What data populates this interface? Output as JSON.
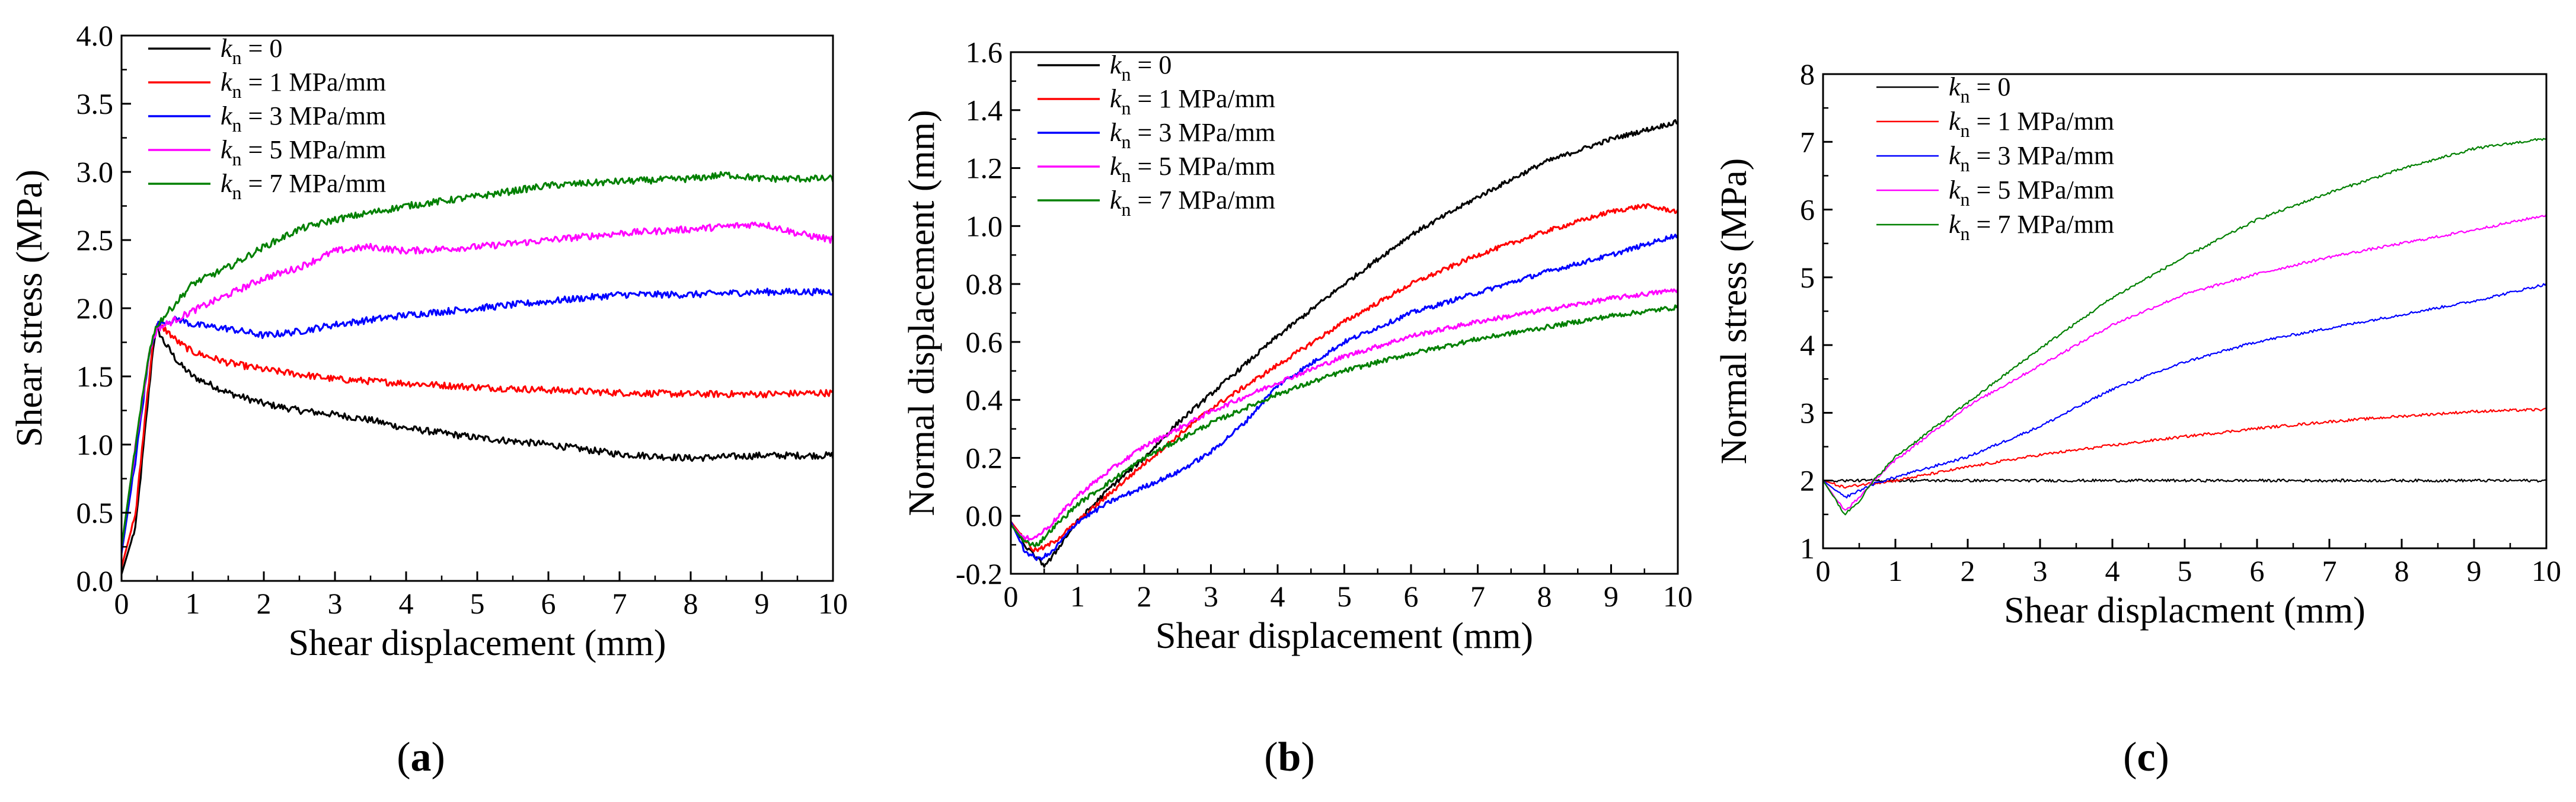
{
  "chart_data": [
    {
      "type": "line",
      "panel_label": "a",
      "xlabel": "Shear displacement (mm)",
      "ylabel": "Shear stress (MPa)",
      "xlim": [
        0,
        10
      ],
      "ylim": [
        0,
        4.0
      ],
      "xticks": [
        0,
        1,
        2,
        3,
        4,
        5,
        6,
        7,
        8,
        9,
        10
      ],
      "yticks": [
        0.0,
        0.5,
        1.0,
        1.5,
        2.0,
        2.5,
        3.0,
        3.5,
        4.0
      ],
      "ytick_decimals": 1,
      "legend_position": "top-left",
      "noise": 0.025,
      "series": [
        {
          "name": "k_n = 0",
          "legend_var": "k",
          "legend_sub": "n",
          "legend_rest": " = 0",
          "color": "#000000",
          "x": [
            0,
            0.2,
            0.35,
            0.45,
            0.5,
            0.6,
            0.8,
            1,
            1.5,
            2,
            2.5,
            3,
            3.5,
            4,
            5,
            6,
            7,
            8,
            9,
            10
          ],
          "y": [
            0.05,
            0.4,
            1.2,
            1.75,
            1.85,
            1.75,
            1.6,
            1.5,
            1.38,
            1.3,
            1.25,
            1.22,
            1.18,
            1.12,
            1.05,
            1.0,
            0.93,
            0.9,
            0.92,
            0.92
          ]
        },
        {
          "name": "k_n = 1 MPa/mm",
          "legend_var": "k",
          "legend_sub": "n",
          "legend_rest": " = 1 MPa/mm",
          "color": "#ff0000",
          "x": [
            0,
            0.2,
            0.35,
            0.45,
            0.5,
            0.6,
            0.8,
            1,
            1.5,
            2,
            3,
            4,
            5,
            6,
            7,
            8,
            9,
            10
          ],
          "y": [
            0.1,
            0.5,
            1.3,
            1.8,
            1.88,
            1.85,
            1.75,
            1.68,
            1.6,
            1.55,
            1.48,
            1.45,
            1.42,
            1.4,
            1.38,
            1.37,
            1.37,
            1.38
          ]
        },
        {
          "name": "k_n = 3 MPa/mm",
          "legend_var": "k",
          "legend_sub": "n",
          "legend_rest": " = 3 MPa/mm",
          "color": "#0000ff",
          "x": [
            0,
            0.2,
            0.4,
            0.5,
            0.6,
            0.8,
            1,
            1.5,
            2,
            2.5,
            3,
            4,
            5,
            6,
            7,
            8,
            9,
            10
          ],
          "y": [
            0.2,
            0.9,
            1.7,
            1.88,
            1.9,
            1.92,
            1.88,
            1.85,
            1.8,
            1.83,
            1.88,
            1.95,
            2.0,
            2.05,
            2.1,
            2.1,
            2.12,
            2.12
          ]
        },
        {
          "name": "k_n = 5 MPa/mm",
          "legend_var": "k",
          "legend_sub": "n",
          "legend_rest": " = 5 MPa/mm",
          "color": "#ff00ff",
          "x": [
            0,
            0.2,
            0.4,
            0.5,
            0.7,
            1,
            1.5,
            2,
            2.5,
            3,
            3.5,
            4,
            5,
            6,
            7,
            8,
            9,
            9.5,
            10
          ],
          "y": [
            0.25,
            1.0,
            1.7,
            1.85,
            1.9,
            1.98,
            2.1,
            2.22,
            2.3,
            2.42,
            2.45,
            2.42,
            2.45,
            2.5,
            2.55,
            2.58,
            2.62,
            2.55,
            2.5
          ]
        },
        {
          "name": "k_n = 7 MPa/mm",
          "legend_var": "k",
          "legend_sub": "n",
          "legend_rest": " = 7 MPa/mm",
          "color": "#008000",
          "x": [
            0,
            0.2,
            0.4,
            0.5,
            0.7,
            1,
            1.5,
            2,
            2.5,
            3,
            3.5,
            4,
            5,
            6,
            7,
            8,
            8.5,
            9,
            10
          ],
          "y": [
            0.25,
            1.0,
            1.72,
            1.88,
            2.0,
            2.18,
            2.3,
            2.45,
            2.58,
            2.65,
            2.7,
            2.75,
            2.82,
            2.9,
            2.93,
            2.95,
            2.98,
            2.95,
            2.95
          ]
        }
      ]
    },
    {
      "type": "line",
      "panel_label": "b",
      "xlabel": "Shear displacement (mm)",
      "ylabel": "Normal displacement (mm)",
      "xlim": [
        0,
        10
      ],
      "ylim": [
        -0.2,
        1.6
      ],
      "xticks": [
        0,
        1,
        2,
        3,
        4,
        5,
        6,
        7,
        8,
        9,
        10
      ],
      "yticks": [
        -0.2,
        0.0,
        0.2,
        0.4,
        0.6,
        0.8,
        1.0,
        1.2,
        1.4,
        1.6
      ],
      "ytick_decimals": 1,
      "legend_position": "top-left",
      "noise": 0.008,
      "series": [
        {
          "name": "k_n = 0",
          "legend_var": "k",
          "legend_sub": "n",
          "legend_rest": " = 0",
          "color": "#000000",
          "x": [
            0,
            0.2,
            0.4,
            0.5,
            0.6,
            0.8,
            1,
            1.5,
            2,
            2.5,
            3,
            3.5,
            4,
            5,
            6,
            7,
            8,
            9,
            10
          ],
          "y": [
            -0.02,
            -0.1,
            -0.15,
            -0.17,
            -0.15,
            -0.08,
            -0.02,
            0.1,
            0.2,
            0.32,
            0.42,
            0.52,
            0.62,
            0.8,
            0.97,
            1.1,
            1.22,
            1.3,
            1.36
          ]
        },
        {
          "name": "k_n = 1 MPa/mm",
          "legend_var": "k",
          "legend_sub": "n",
          "legend_rest": " = 1 MPa/mm",
          "color": "#ff0000",
          "x": [
            0,
            0.2,
            0.35,
            0.5,
            0.7,
            1,
            1.5,
            2,
            3,
            4,
            5,
            6,
            7,
            8,
            9,
            9.5,
            10
          ],
          "y": [
            -0.02,
            -0.08,
            -0.12,
            -0.11,
            -0.08,
            -0.02,
            0.08,
            0.18,
            0.37,
            0.52,
            0.67,
            0.8,
            0.9,
            0.98,
            1.05,
            1.07,
            1.05
          ]
        },
        {
          "name": "k_n = 3 MPa/mm",
          "legend_var": "k",
          "legend_sub": "n",
          "legend_rest": " = 3 MPa/mm",
          "color": "#0000ff",
          "x": [
            0,
            0.2,
            0.4,
            0.6,
            1,
            1.5,
            2,
            2.5,
            3,
            3.5,
            4,
            5,
            6,
            7,
            8,
            9,
            10
          ],
          "y": [
            -0.02,
            -0.12,
            -0.15,
            -0.13,
            -0.02,
            0.05,
            0.1,
            0.15,
            0.22,
            0.32,
            0.45,
            0.6,
            0.7,
            0.77,
            0.84,
            0.9,
            0.97
          ]
        },
        {
          "name": "k_n = 5 MPa/mm",
          "legend_var": "k",
          "legend_sub": "n",
          "legend_rest": " = 5 MPa/mm",
          "color": "#ff00ff",
          "x": [
            0,
            0.2,
            0.4,
            0.6,
            1,
            1.5,
            2,
            3,
            4,
            5,
            6,
            7,
            8,
            9,
            10
          ],
          "y": [
            -0.03,
            -0.08,
            -0.07,
            -0.03,
            0.07,
            0.16,
            0.24,
            0.36,
            0.46,
            0.55,
            0.62,
            0.67,
            0.71,
            0.75,
            0.78
          ]
        },
        {
          "name": "k_n = 7 MPa/mm",
          "legend_var": "k",
          "legend_sub": "n",
          "legend_rest": " = 7 MPa/mm",
          "color": "#008000",
          "x": [
            0,
            0.2,
            0.4,
            0.6,
            1,
            1.5,
            2,
            3,
            4,
            5,
            6,
            7,
            8,
            9,
            10
          ],
          "y": [
            -0.03,
            -0.09,
            -0.1,
            -0.05,
            0.04,
            0.12,
            0.2,
            0.32,
            0.42,
            0.5,
            0.56,
            0.61,
            0.65,
            0.69,
            0.72
          ]
        }
      ]
    },
    {
      "type": "line",
      "panel_label": "c",
      "xlabel": "Shear displacment (mm)",
      "ylabel": "Normal stress (MPa)",
      "xlim": [
        0,
        10
      ],
      "ylim": [
        1,
        8
      ],
      "xticks": [
        0,
        1,
        2,
        3,
        4,
        5,
        6,
        7,
        8,
        9,
        10
      ],
      "yticks": [
        1,
        2,
        3,
        4,
        5,
        6,
        7,
        8
      ],
      "ytick_decimals": 0,
      "legend_position": "top-left",
      "noise": 0.02,
      "series": [
        {
          "name": "k_n = 0",
          "legend_var": "k",
          "legend_sub": "n",
          "legend_rest": " = 0",
          "color": "#000000",
          "x": [
            0,
            0.5,
            1,
            2,
            3,
            4,
            5,
            6,
            7,
            8,
            9,
            10
          ],
          "y": [
            2,
            2,
            2,
            2,
            2,
            2,
            2,
            2,
            2,
            2,
            2,
            2
          ]
        },
        {
          "name": "k_n = 1 MPa/mm",
          "legend_var": "k",
          "legend_sub": "n",
          "legend_rest": " = 1 MPa/mm",
          "color": "#ff0000",
          "x": [
            0,
            0.3,
            0.6,
            1,
            2,
            3,
            4,
            5,
            6,
            7,
            8,
            9,
            10
          ],
          "y": [
            2,
            1.9,
            1.95,
            2.0,
            2.2,
            2.38,
            2.52,
            2.65,
            2.77,
            2.87,
            2.95,
            3.02,
            3.05
          ]
        },
        {
          "name": "k_n = 3 MPa/mm",
          "legend_var": "k",
          "legend_sub": "n",
          "legend_rest": " = 3 MPa/mm",
          "color": "#0000ff",
          "x": [
            0,
            0.3,
            0.5,
            0.7,
            1,
            2,
            3,
            4,
            5,
            6,
            7,
            8,
            9,
            10
          ],
          "y": [
            2,
            1.75,
            1.85,
            1.95,
            2.05,
            2.35,
            2.8,
            3.35,
            3.75,
            4.05,
            4.25,
            4.45,
            4.65,
            4.9
          ]
        },
        {
          "name": "k_n = 5 MPa/mm",
          "legend_var": "k",
          "legend_sub": "n",
          "legend_rest": " = 5 MPa/mm",
          "color": "#ff00ff",
          "x": [
            0,
            0.3,
            0.5,
            0.7,
            1,
            2,
            3,
            4,
            5,
            6,
            7,
            8,
            9,
            10
          ],
          "y": [
            2,
            1.55,
            1.75,
            2.0,
            2.3,
            3.1,
            3.7,
            4.3,
            4.75,
            5.05,
            5.3,
            5.5,
            5.7,
            5.92
          ]
        },
        {
          "name": "k_n = 7 MPa/mm",
          "legend_var": "k",
          "legend_sub": "n",
          "legend_rest": " = 7 MPa/mm",
          "color": "#008000",
          "x": [
            0,
            0.3,
            0.5,
            0.7,
            1,
            2,
            3,
            4,
            5,
            6,
            7,
            8,
            9,
            10
          ],
          "y": [
            2,
            1.5,
            1.7,
            2.0,
            2.35,
            3.15,
            3.95,
            4.7,
            5.3,
            5.85,
            6.25,
            6.6,
            6.9,
            7.05
          ]
        }
      ]
    }
  ]
}
